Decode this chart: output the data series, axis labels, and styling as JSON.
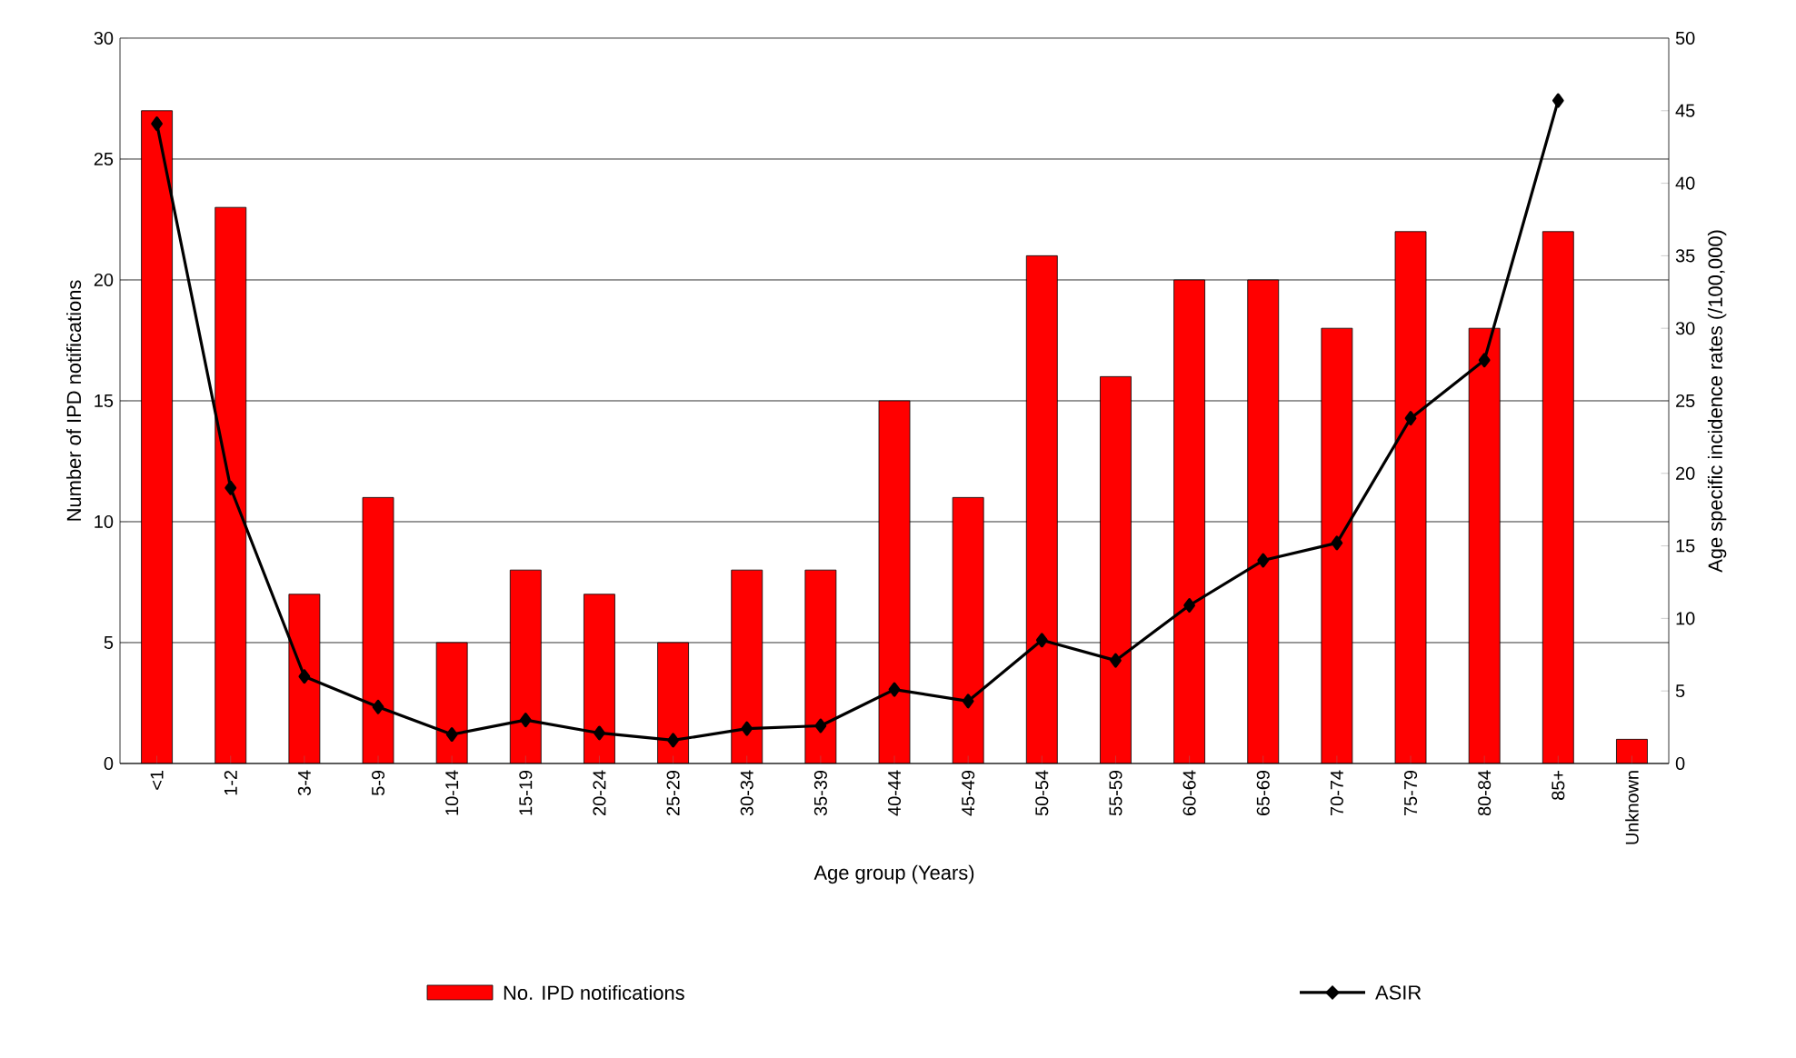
{
  "chart_data": {
    "type": "bar",
    "xlabel": "Age group (Years)",
    "ylabel": "Number of IPD notifications",
    "y2label": "Age specific incidence rates (/100,000)",
    "categories": [
      "<1",
      "1-2",
      "3-4",
      "5-9",
      "10-14",
      "15-19",
      "20-24",
      "25-29",
      "30-34",
      "35-39",
      "40-44",
      "45-49",
      "50-54",
      "55-59",
      "60-64",
      "65-69",
      "70-74",
      "75-79",
      "80-84",
      "85+",
      "Unknown"
    ],
    "series": [
      {
        "name": "No. IPD notifications",
        "color": "#ff0000",
        "values": [
          27,
          23,
          7,
          11,
          5,
          8,
          7,
          5,
          8,
          8,
          15,
          11,
          21,
          16,
          20,
          20,
          18,
          22,
          18,
          22,
          1
        ]
      },
      {
        "name": "ASIR",
        "type": "line",
        "axis": "y2",
        "color": "#000000",
        "marker": "diamond",
        "values": [
          44.1,
          19.0,
          6.0,
          3.9,
          2.0,
          3.0,
          2.1,
          1.6,
          2.4,
          2.6,
          5.1,
          4.3,
          8.5,
          7.1,
          10.9,
          14.0,
          15.2,
          23.8,
          27.8,
          45.7,
          null
        ]
      }
    ],
    "ylim": [
      0,
      30
    ],
    "yticks": [
      0,
      5,
      10,
      15,
      20,
      25,
      30
    ],
    "y2lim": [
      0,
      50
    ],
    "y2ticks": [
      0,
      5,
      10,
      15,
      20,
      25,
      30,
      35,
      40,
      45,
      50
    ],
    "grid": "y",
    "legend": "bottom"
  }
}
